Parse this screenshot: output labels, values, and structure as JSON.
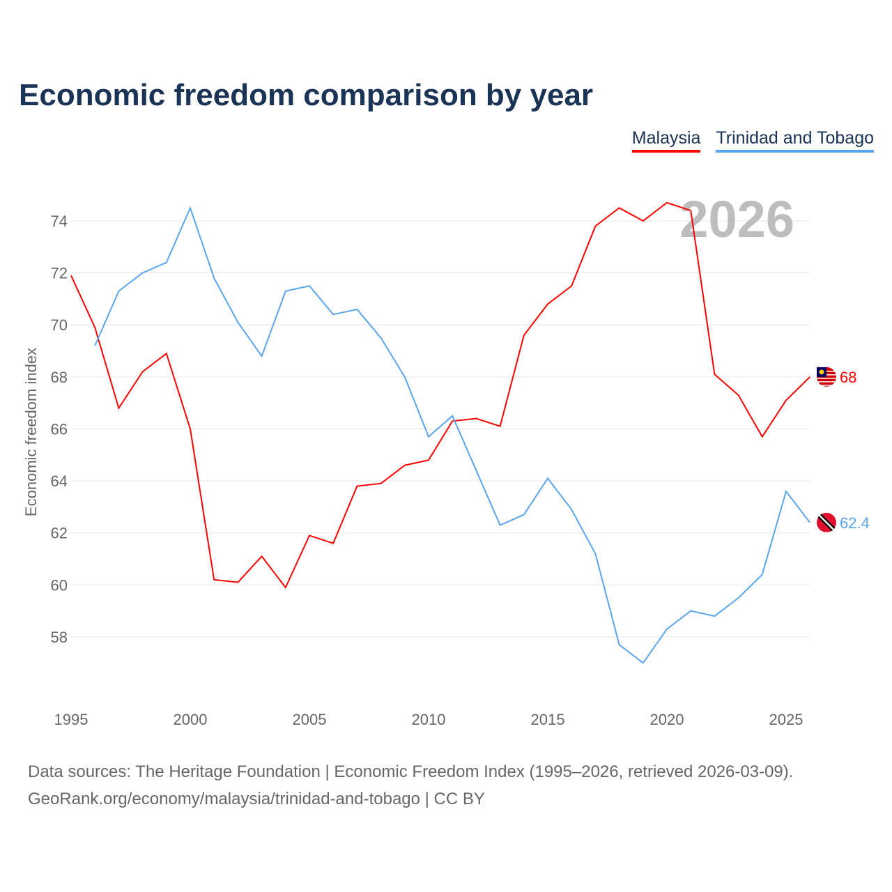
{
  "title": "Economic freedom comparison by year",
  "footer": {
    "line1": "Data sources: The Heritage Foundation | Economic Freedom Index (1995–2026, retrieved 2026-03-09).",
    "line2": "GeoRank.org/economy/malaysia/trinidad-and-tobago | CC BY"
  },
  "chart_data": {
    "type": "line",
    "title": "Economic freedom comparison by year",
    "xlabel": "",
    "ylabel": "Economic freedom index",
    "year_watermark": "2026",
    "xlim": [
      1995,
      2026
    ],
    "ylim": [
      56,
      76
    ],
    "xticks": [
      "1995",
      "2000",
      "2005",
      "2010",
      "2015",
      "2020",
      "2025"
    ],
    "yticks": [
      "58",
      "60",
      "62",
      "64",
      "66",
      "68",
      "70",
      "72",
      "74"
    ],
    "grid": true,
    "legend_position": "top-right",
    "series": [
      {
        "name": "Malaysia",
        "color": "#ff0000",
        "end_label": "68",
        "x": [
          1995,
          1996,
          1997,
          1998,
          1999,
          2000,
          2001,
          2002,
          2003,
          2004,
          2005,
          2006,
          2007,
          2008,
          2009,
          2010,
          2011,
          2012,
          2013,
          2014,
          2015,
          2016,
          2017,
          2018,
          2019,
          2020,
          2021,
          2022,
          2023,
          2024,
          2025,
          2026
        ],
        "values": [
          71.9,
          69.9,
          66.8,
          68.2,
          68.9,
          66.0,
          60.2,
          60.1,
          61.1,
          59.9,
          61.9,
          61.6,
          63.8,
          63.9,
          64.6,
          64.8,
          66.3,
          66.4,
          66.1,
          69.6,
          70.8,
          71.5,
          73.8,
          74.5,
          74.0,
          74.7,
          74.4,
          68.1,
          67.3,
          65.7,
          67.1,
          68.0
        ]
      },
      {
        "name": "Trinidad and Tobago",
        "color": "#5aa5ec",
        "end_label": "62.4",
        "x": [
          1996,
          1997,
          1998,
          1999,
          2000,
          2001,
          2002,
          2003,
          2004,
          2005,
          2006,
          2007,
          2008,
          2009,
          2010,
          2011,
          2012,
          2013,
          2014,
          2015,
          2016,
          2017,
          2018,
          2019,
          2020,
          2021,
          2022,
          2023,
          2024,
          2025,
          2026
        ],
        "values": [
          69.2,
          71.3,
          72.0,
          72.4,
          74.5,
          71.8,
          70.1,
          68.8,
          71.3,
          71.5,
          70.4,
          70.6,
          69.5,
          68.0,
          65.7,
          66.5,
          64.4,
          62.3,
          62.7,
          64.1,
          62.9,
          61.2,
          57.7,
          57.0,
          58.3,
          59.0,
          58.8,
          59.5,
          60.4,
          63.6,
          62.4
        ]
      }
    ]
  }
}
